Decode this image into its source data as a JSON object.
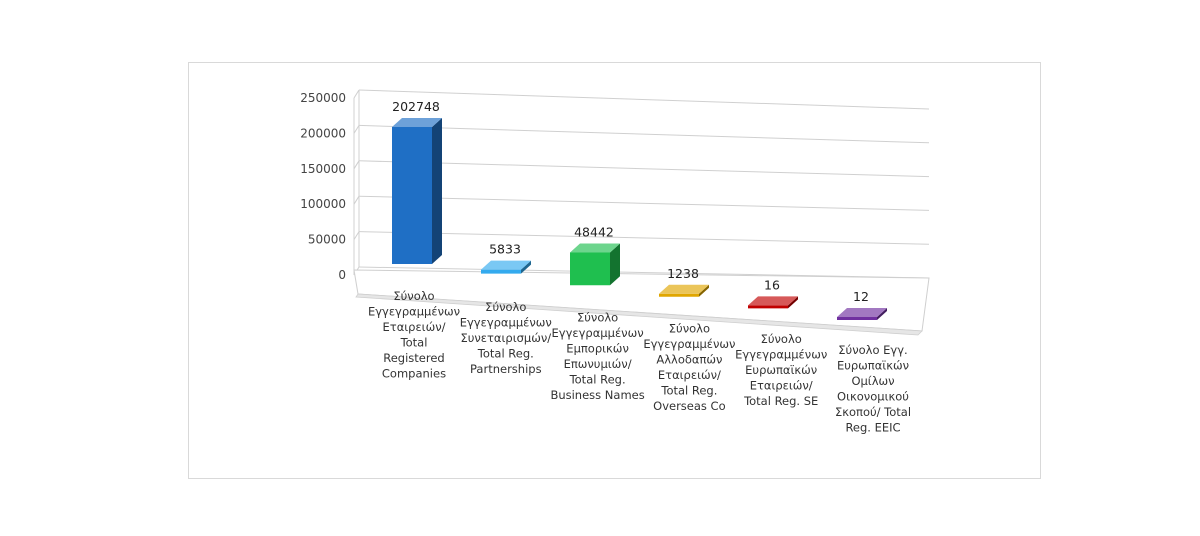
{
  "chart_data": {
    "type": "bar",
    "style": "3d-column",
    "categories": [
      [
        "Σύνολο",
        "Εγγεγραμμένων",
        "Εταιρειών/",
        "Total",
        "Registered",
        "Companies"
      ],
      [
        "Σύνολο",
        "Εγγεγραμμένων",
        "Συνεταιρισμών/",
        "Total Reg.",
        "Partnerships"
      ],
      [
        "Σύνολο",
        "Εγγεγραμμένων",
        "Εμπορικών",
        "Επωνυμιών/",
        "Total Reg.",
        "Business Names"
      ],
      [
        "Σύνολο",
        "Εγγεγραμμένων",
        "Αλλοδαπών",
        "Εταιρειών/",
        "Total Reg.",
        "Overseas Co"
      ],
      [
        "Σύνολο",
        "Εγγεγραμμένων",
        "Ευρωπαϊκών",
        "Εταιρειών/",
        "Total Reg. SE"
      ],
      [
        "Σύνολο Εγγ.",
        "Ευρωπαϊκών",
        "Ομίλων",
        "Οικονομικού",
        "Σκοπού/ Total",
        "Reg. EEIC"
      ]
    ],
    "values": [
      202748,
      5833,
      48442,
      1238,
      16,
      12
    ],
    "data_labels": [
      "202748",
      "5833",
      "48442",
      "1238",
      "16",
      "12"
    ],
    "colors": [
      "#1f6fc5",
      "#33aaee",
      "#1fbf4f",
      "#e0a600",
      "#c00000",
      "#7030a0"
    ],
    "ylim": [
      0,
      250000
    ],
    "yticks": [
      "0",
      "50000",
      "100000",
      "150000",
      "200000",
      "250000"
    ],
    "grid": true,
    "legend": "none",
    "title": "",
    "xlabel": "",
    "ylabel": ""
  }
}
